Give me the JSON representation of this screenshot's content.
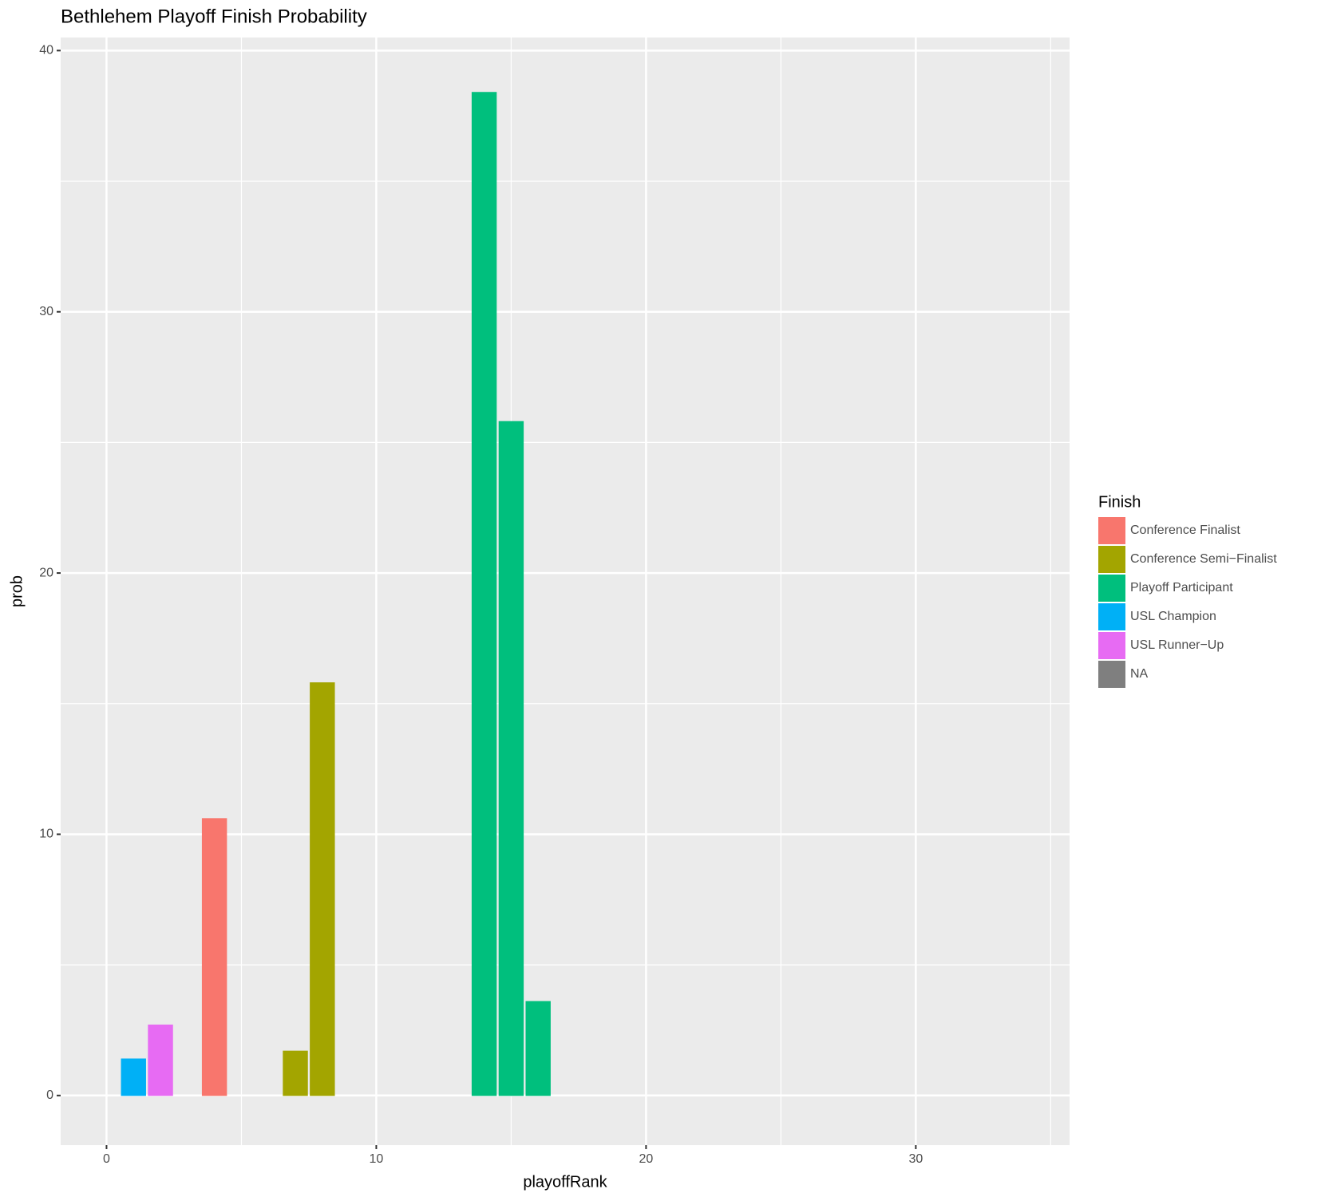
{
  "chart_data": {
    "type": "bar",
    "title": "Bethlehem Playoff Finish Probability",
    "x_label": "playoffRank",
    "y_label": "prob",
    "legend_title": "Finish",
    "xlim": [
      -1.7,
      35.7
    ],
    "xticks": [
      0,
      10,
      20,
      30
    ],
    "ylim": [
      -1.9,
      40.5
    ],
    "yticks": [
      0,
      10,
      20,
      30,
      40
    ],
    "grid": true,
    "minor_grid": true,
    "legend_position": "right",
    "series": [
      {
        "name": "Conference Finalist",
        "color": "#F8766D",
        "x": [
          4
        ],
        "values": [
          10.6
        ]
      },
      {
        "name": "Conference Semi−Finalist",
        "color": "#A3A500",
        "x": [
          7,
          8
        ],
        "values": [
          1.7,
          15.8
        ]
      },
      {
        "name": "Playoff Participant",
        "color": "#00BF7D",
        "x": [
          14,
          15,
          16
        ],
        "values": [
          38.4,
          25.8,
          3.6
        ]
      },
      {
        "name": "USL Champion",
        "color": "#00B0F6",
        "x": [
          1
        ],
        "values": [
          1.4
        ]
      },
      {
        "name": "USL Runner−Up",
        "color": "#E76BF3",
        "x": [
          2
        ],
        "values": [
          2.7
        ]
      },
      {
        "name": "NA",
        "color": "#7F7F7F",
        "x": [
          3,
          5,
          6,
          9,
          10,
          11,
          12,
          13,
          17,
          18,
          19,
          20,
          21,
          22,
          23,
          24,
          25,
          26,
          27,
          28,
          29,
          30,
          31,
          32,
          33
        ],
        "values": [
          0,
          0,
          0,
          0,
          0,
          0,
          0,
          0,
          0,
          0,
          0,
          0,
          0,
          0,
          0,
          0,
          0,
          0,
          0,
          0,
          0,
          0,
          0,
          0,
          0
        ]
      }
    ]
  }
}
